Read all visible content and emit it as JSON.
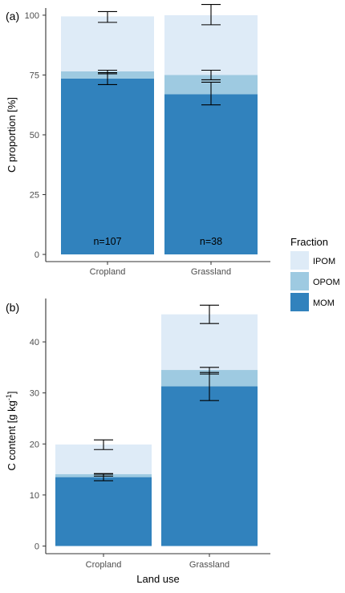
{
  "colors": {
    "MOM": "#3182bd",
    "OPOM": "#9ecae1",
    "IPOM": "#deebf7"
  },
  "legend": {
    "title": "Fraction",
    "items": [
      {
        "label": "IPOM",
        "color": "#deebf7"
      },
      {
        "label": "OPOM",
        "color": "#9ecae1"
      },
      {
        "label": "MOM",
        "color": "#3182bd"
      }
    ]
  },
  "chart_data": [
    {
      "type": "bar",
      "stacked": true,
      "panel_label": "(a)",
      "categories": [
        "Cropland",
        "Grassland"
      ],
      "ylabel": "C proportion [%]",
      "xlabel": "",
      "ylim": [
        -3,
        103
      ],
      "yticks": [
        0,
        25,
        50,
        75,
        100
      ],
      "series": [
        {
          "name": "MOM",
          "values": [
            73.5,
            67.0
          ],
          "error": [
            [
              71.0,
              76.0
            ],
            [
              62.5,
              72.0
            ]
          ]
        },
        {
          "name": "OPOM",
          "values": [
            3.0,
            8.0
          ],
          "error": [
            [
              75.5,
              77.0
            ],
            [
              73.0,
              77.0
            ]
          ]
        },
        {
          "name": "IPOM",
          "values": [
            23.0,
            25.0
          ],
          "error": [
            [
              97.0,
              101.5
            ],
            [
              96.0,
              104.5
            ]
          ]
        }
      ],
      "annotations": [
        "n=107",
        "n=38"
      ]
    },
    {
      "type": "bar",
      "stacked": true,
      "panel_label": "(b)",
      "categories": [
        "Cropland",
        "Grassland"
      ],
      "ylabel": "C content [g kg",
      "ylabel_sup": "-1",
      "ylabel_end": "]",
      "xlabel": "Land use",
      "ylim": [
        -1.5,
        48.5
      ],
      "yticks": [
        0,
        10,
        20,
        30,
        40
      ],
      "series": [
        {
          "name": "MOM",
          "values": [
            13.5,
            31.3
          ],
          "error": [
            [
              12.8,
              14.1
            ],
            [
              28.5,
              34.0
            ]
          ]
        },
        {
          "name": "OPOM",
          "values": [
            0.6,
            3.2
          ],
          "error": [
            [
              13.7,
              14.2
            ],
            [
              33.7,
              35.0
            ]
          ]
        },
        {
          "name": "IPOM",
          "values": [
            5.8,
            10.9
          ],
          "error": [
            [
              18.9,
              20.8
            ],
            [
              43.6,
              47.2
            ]
          ]
        }
      ]
    }
  ]
}
